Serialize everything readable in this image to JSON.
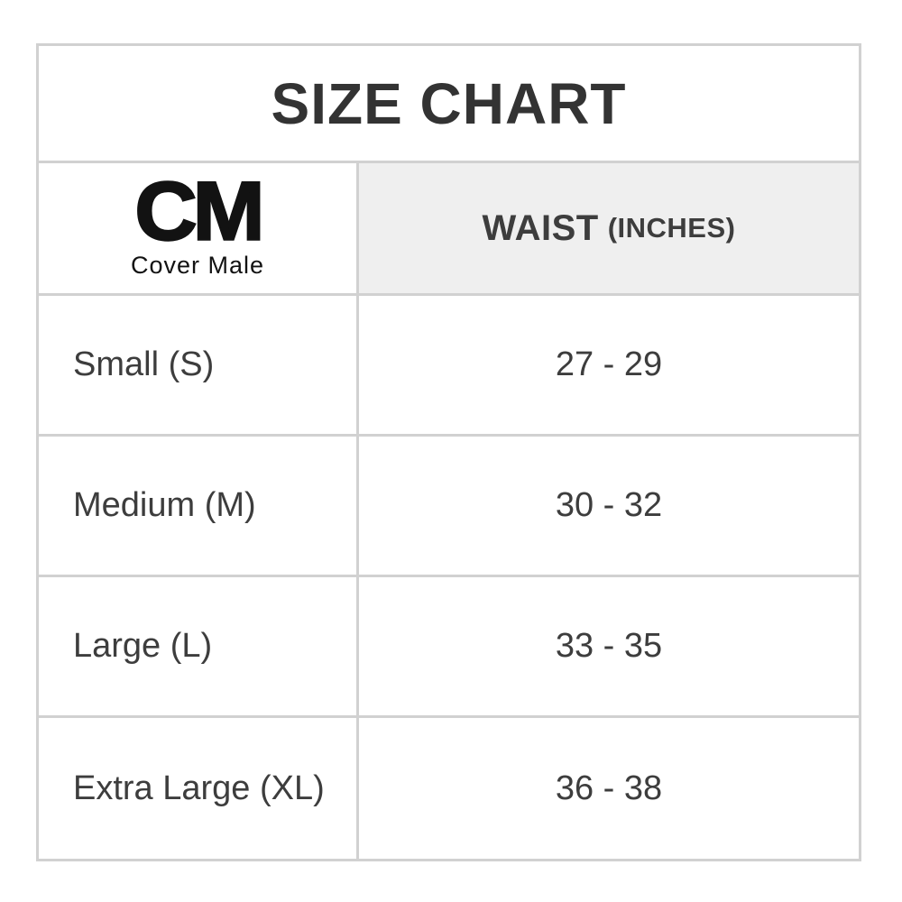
{
  "title": "SIZE CHART",
  "logo": {
    "abbr": "CM",
    "name": "Cover Male"
  },
  "header": {
    "waist_label": "WAIST",
    "waist_unit": "(INCHES)"
  },
  "rows": [
    {
      "size": "Small (S)",
      "waist": "27 - 29"
    },
    {
      "size": "Medium (M)",
      "waist": "30 - 32"
    },
    {
      "size": "Large (L)",
      "waist": "33 - 35"
    },
    {
      "size": "Extra Large (XL)",
      "waist": "36 - 38"
    }
  ],
  "colors": {
    "border": "#d1d1d1",
    "header_bg": "#efefef",
    "text": "#3d3d3d",
    "title_text": "#333333",
    "logo_text": "#121212",
    "background": "#ffffff"
  },
  "chart_data": {
    "type": "table",
    "title": "SIZE CHART",
    "columns": [
      "Size",
      "Waist (inches)"
    ],
    "rows": [
      [
        "Small (S)",
        "27 - 29"
      ],
      [
        "Medium (M)",
        "30 - 32"
      ],
      [
        "Large (L)",
        "33 - 35"
      ],
      [
        "Extra Large (XL)",
        "36 - 38"
      ]
    ],
    "waist_ranges_numeric": [
      {
        "size": "S",
        "min": 27,
        "max": 29
      },
      {
        "size": "M",
        "min": 30,
        "max": 32
      },
      {
        "size": "L",
        "min": 33,
        "max": 35
      },
      {
        "size": "XL",
        "min": 36,
        "max": 38
      }
    ]
  }
}
